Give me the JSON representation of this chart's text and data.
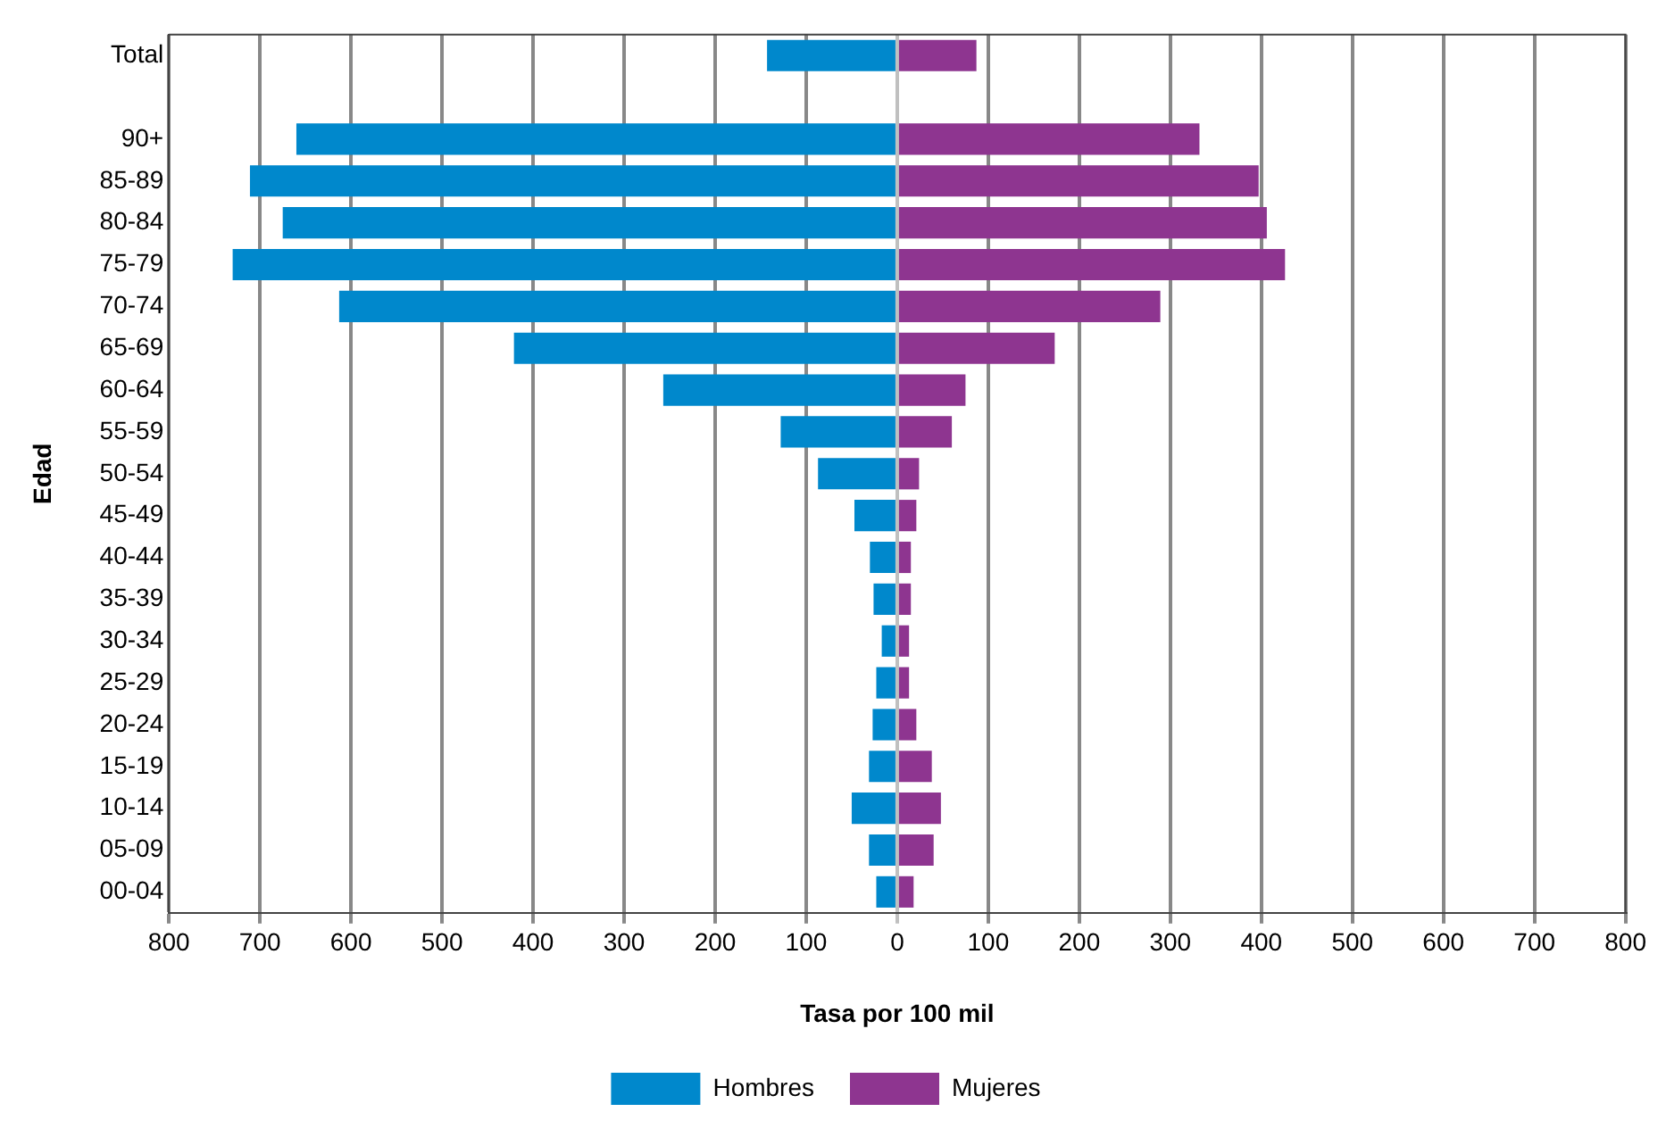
{
  "chart_data": {
    "type": "bar",
    "orientation": "horizontal",
    "stacked": true,
    "xlabel": "Tasa por 100 mil",
    "ylabel": "Edad",
    "categories": [
      "Total",
      null,
      "90+",
      "85-89",
      "80-84",
      "75-79",
      "70-74",
      "65-69",
      "60-64",
      "55-59",
      "50-54",
      "45-49",
      "40-44",
      "35-39",
      "30-34",
      "25-29",
      "20-24",
      "15-19",
      "10-14",
      "05-09",
      "00-04"
    ],
    "series": [
      {
        "name": "Hombres",
        "color": "#0088cc",
        "values": [
          -143,
          null,
          -660,
          -711,
          -675,
          -730,
          -613,
          -421,
          -257,
          -128,
          -87,
          -47,
          -30,
          -26,
          -17,
          -23,
          -27,
          -31,
          -50,
          -31,
          -23
        ]
      },
      {
        "name": "Mujeres",
        "color": "#8e3590",
        "values": [
          87,
          null,
          332,
          397,
          406,
          426,
          289,
          173,
          75,
          60,
          24,
          21,
          15,
          15,
          13,
          13,
          21,
          38,
          48,
          40,
          18
        ]
      }
    ],
    "xlim": [
      -800,
      800
    ],
    "xticks": [
      {
        "value": -800,
        "label": "800"
      },
      {
        "value": -700,
        "label": "700"
      },
      {
        "value": -600,
        "label": "600"
      },
      {
        "value": -500,
        "label": "500"
      },
      {
        "value": -400,
        "label": "400"
      },
      {
        "value": -300,
        "label": "300"
      },
      {
        "value": -200,
        "label": "200"
      },
      {
        "value": -100,
        "label": "100"
      },
      0,
      100,
      200,
      300,
      400,
      500,
      600,
      700,
      800
    ],
    "grid": "x",
    "legend": "bottom"
  }
}
